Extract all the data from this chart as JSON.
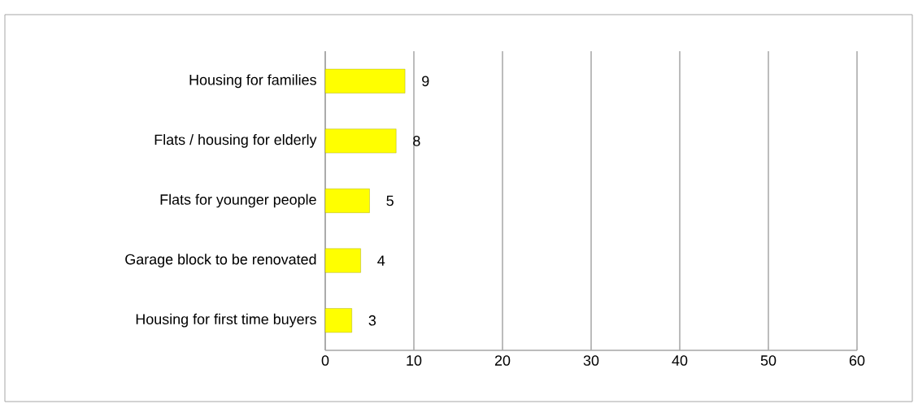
{
  "chart_data": {
    "type": "bar",
    "orientation": "horizontal",
    "categories": [
      "Housing for families",
      "Flats / housing for elderly",
      "Flats for younger people",
      "Garage block to be renovated",
      "Housing for first time buyers"
    ],
    "values": [
      9,
      8,
      5,
      4,
      3
    ],
    "color": "#ffff00",
    "xlim": [
      0,
      60
    ],
    "xticks": [
      0,
      10,
      20,
      30,
      40,
      50,
      60
    ],
    "grid": "x",
    "data_labels": true
  }
}
